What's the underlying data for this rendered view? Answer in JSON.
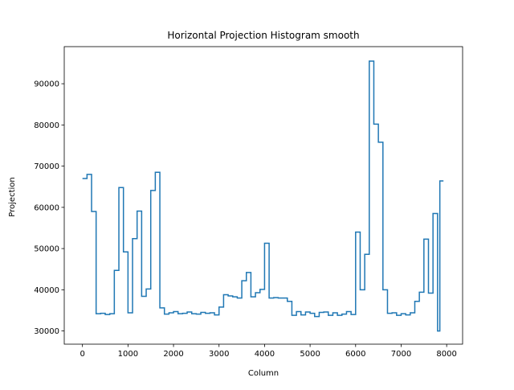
{
  "chart_data": {
    "type": "line",
    "drawstyle": "steps",
    "title": "Horizontal Projection Histogram smooth",
    "xlabel": "Column",
    "ylabel": "Projection",
    "xlim": [
      -400,
      8350
    ],
    "ylim": [
      26800,
      99000
    ],
    "xticks": [
      0,
      1000,
      2000,
      3000,
      4000,
      5000,
      6000,
      7000,
      8000
    ],
    "yticks": [
      30000,
      40000,
      50000,
      60000,
      70000,
      80000,
      90000
    ],
    "grid": false,
    "line_color": "#1f77b4",
    "series": [
      {
        "x": [
          0,
          100,
          200,
          300,
          400,
          500,
          600,
          700,
          800,
          900,
          1000,
          1100,
          1200,
          1300,
          1400,
          1500,
          1600,
          1700,
          1800,
          1900,
          2000,
          2100,
          2200,
          2300,
          2400,
          2500,
          2600,
          2700,
          2800,
          2900,
          3000,
          3100,
          3200,
          3300,
          3400,
          3500,
          3600,
          3700,
          3800,
          3900,
          4000,
          4100,
          4200,
          4300,
          4400,
          4500,
          4600,
          4700,
          4800,
          4900,
          5000,
          5100,
          5200,
          5300,
          5400,
          5500,
          5600,
          5700,
          5800,
          5900,
          6000,
          6100,
          6200,
          6300,
          6400,
          6500,
          6600,
          6700,
          6800,
          6900,
          7000,
          7100,
          7200,
          7300,
          7400,
          7500,
          7600,
          7700,
          7800,
          7850,
          7900,
          7930
        ],
        "values": [
          67000,
          68000,
          59000,
          34200,
          34300,
          34000,
          34200,
          44700,
          64800,
          49200,
          34400,
          52400,
          59100,
          38400,
          40200,
          64100,
          68500,
          35600,
          34100,
          34400,
          34700,
          34200,
          34300,
          34600,
          34200,
          34100,
          34500,
          34300,
          34400,
          33900,
          35800,
          38800,
          38500,
          38300,
          38000,
          42200,
          44200,
          38300,
          39300,
          40100,
          51300,
          38000,
          38100,
          38000,
          38000,
          37200,
          33800,
          34700,
          33900,
          34600,
          34300,
          33500,
          34500,
          34600,
          33800,
          34400,
          33800,
          34100,
          34700,
          34000,
          54000,
          40000,
          48600,
          95500,
          80200,
          75800,
          40000,
          34300,
          34400,
          33800,
          34200,
          33900,
          34400,
          37200,
          39400,
          52300,
          39200,
          58500,
          30000,
          66400,
          66400,
          66400
        ]
      }
    ]
  }
}
